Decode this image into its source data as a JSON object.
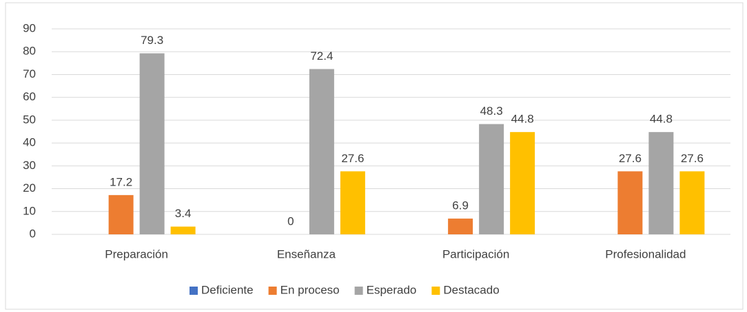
{
  "chart_data": {
    "type": "bar",
    "categories": [
      "Preparación",
      "Enseñanza",
      "Participación",
      "Profesionalidad"
    ],
    "series": [
      {
        "name": "Deficiente",
        "color": "#4472c4",
        "values": [
          null,
          null,
          null,
          null
        ]
      },
      {
        "name": "En proceso",
        "color": "#ed7d31",
        "values": [
          17.2,
          0,
          6.9,
          27.6
        ]
      },
      {
        "name": "Esperado",
        "color": "#a5a5a5",
        "values": [
          79.3,
          72.4,
          48.3,
          44.8
        ]
      },
      {
        "name": "Destacado",
        "color": "#ffc000",
        "values": [
          3.4,
          27.6,
          44.8,
          27.6
        ]
      }
    ],
    "ylim": [
      0,
      90
    ],
    "yticks": [
      0,
      10,
      20,
      30,
      40,
      50,
      60,
      70,
      80,
      90
    ],
    "grid": true,
    "legend": "bottom"
  }
}
